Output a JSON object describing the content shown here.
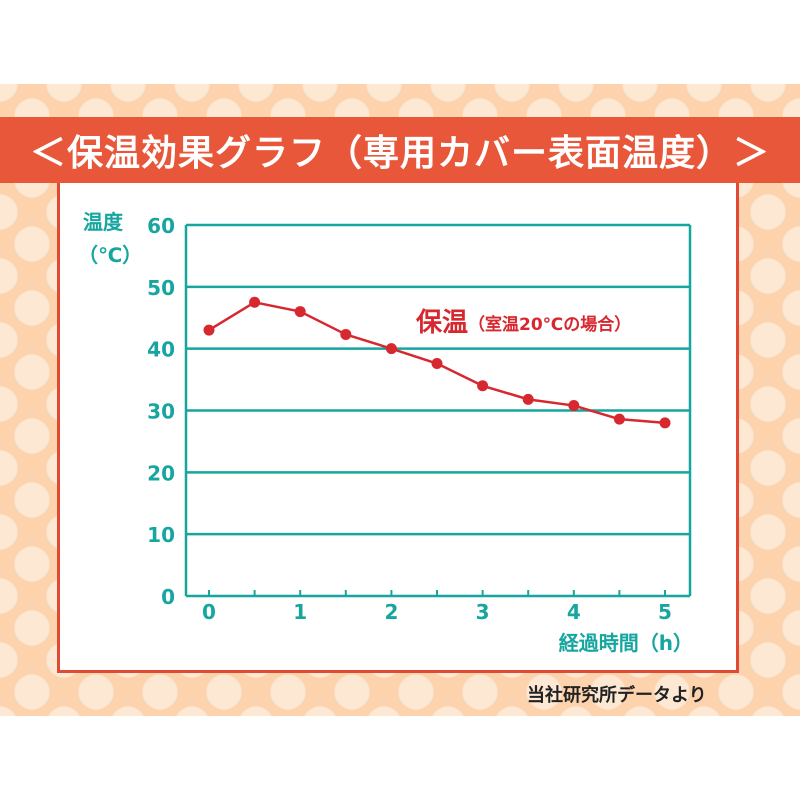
{
  "title": "＜保温効果グラフ（専用カバー表面温度）＞",
  "source_note": "当社研究所データより",
  "colors": {
    "title_bar": "#e8573a",
    "background": "#fcd3ad",
    "polka_dot": "#fde8d4",
    "panel_border": "#e04a35",
    "axis": "#17a5a0",
    "series": "#d7282f"
  },
  "chart_data": {
    "type": "line",
    "ylabel_line1": "温度",
    "ylabel_line2": "（℃）",
    "xlabel": "経過時間（h）",
    "ylim": [
      0,
      60
    ],
    "xlim": [
      0,
      5
    ],
    "y_ticks": [
      0,
      10,
      20,
      30,
      40,
      50,
      60
    ],
    "x_ticks": [
      0,
      1,
      2,
      3,
      4,
      5
    ],
    "grid": true,
    "series_label_main": "保温",
    "series_label_sub": "（室温20℃の場合）",
    "series": [
      {
        "x": [
          0,
          0.5,
          1,
          1.5,
          2,
          2.5,
          3,
          3.5,
          4,
          4.5,
          5
        ],
        "y": [
          43,
          47.5,
          46,
          42.3,
          40,
          37.6,
          34,
          31.8,
          30.8,
          28.6,
          28
        ]
      }
    ]
  }
}
